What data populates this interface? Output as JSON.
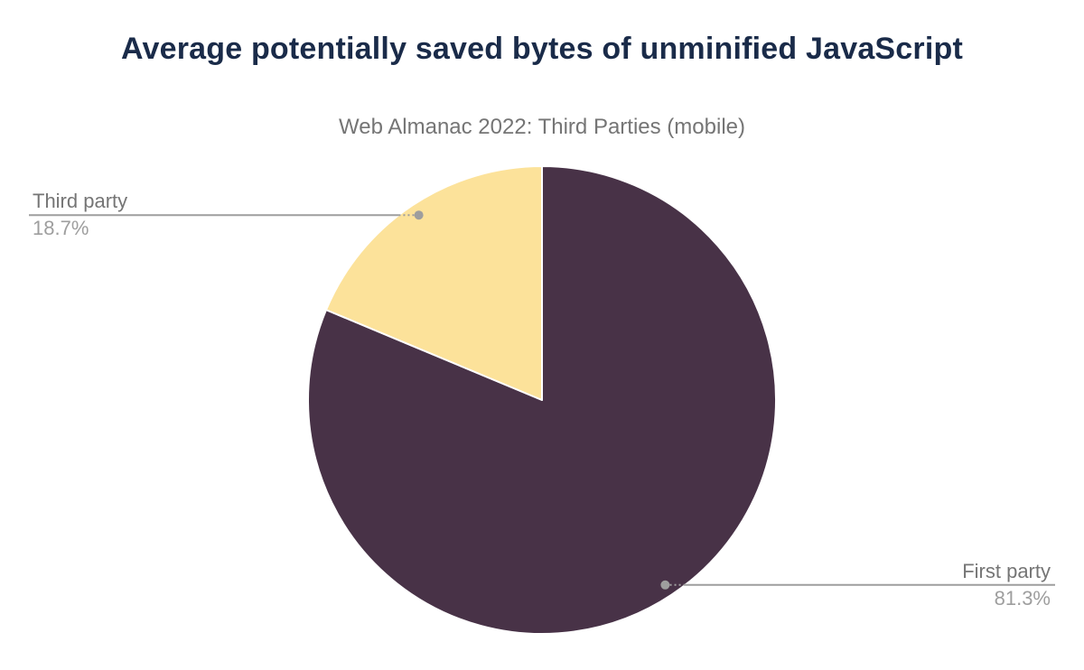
{
  "chart_data": {
    "type": "pie",
    "title": "Average potentially saved bytes of unminified JavaScript",
    "subtitle": "Web Almanac 2022: Third Parties (mobile)",
    "slices": [
      {
        "label": "First party",
        "value": 81.3,
        "display": "81.3%",
        "color": "#483247"
      },
      {
        "label": "Third party",
        "value": 18.7,
        "display": "18.7%",
        "color": "#fce29a"
      }
    ],
    "start_angle_deg": 0,
    "direction": "clockwise",
    "legend_position": "none",
    "labels": "outside-with-leader-lines"
  },
  "colors": {
    "title": "#1a2b49",
    "subtitle": "#757575",
    "label_name": "#757575",
    "label_value": "#9e9e9e",
    "leader_line": "#9e9e9e",
    "slice_border": "#ffffff",
    "background": "#ffffff"
  }
}
